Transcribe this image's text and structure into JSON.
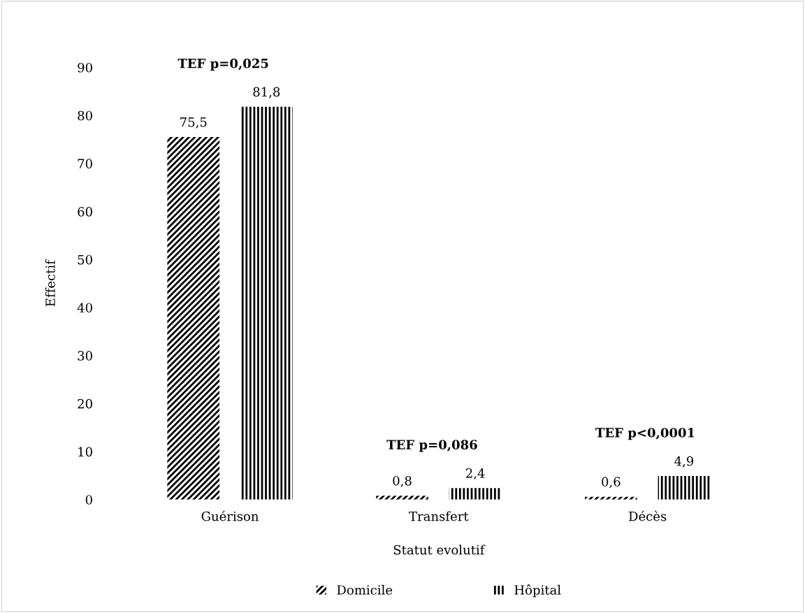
{
  "chart_data": {
    "type": "bar",
    "xlabel": "Statut evolutif",
    "ylabel": "Effectif",
    "categories": [
      "Guérison",
      "Transfert",
      "Décès"
    ],
    "series": [
      {
        "name": "Domicile",
        "color": "#000000",
        "values": [
          75.5,
          0.8,
          0.6
        ],
        "value_labels": [
          "75,5",
          "0,8",
          "0,6"
        ]
      },
      {
        "name": "Hôpital",
        "color": "#000000",
        "values": [
          81.8,
          2.4,
          4.9
        ],
        "value_labels": [
          "81,8",
          "2,4",
          "4,9"
        ]
      }
    ],
    "annotations": [
      "TEF p=0,025",
      "TEF p=0,086",
      "TEF p<0,0001"
    ],
    "ylim": [
      0,
      90
    ],
    "yticks": [
      0,
      10,
      20,
      30,
      40,
      50,
      60,
      70,
      80,
      90
    ],
    "grid": false,
    "legend": "bottom"
  }
}
